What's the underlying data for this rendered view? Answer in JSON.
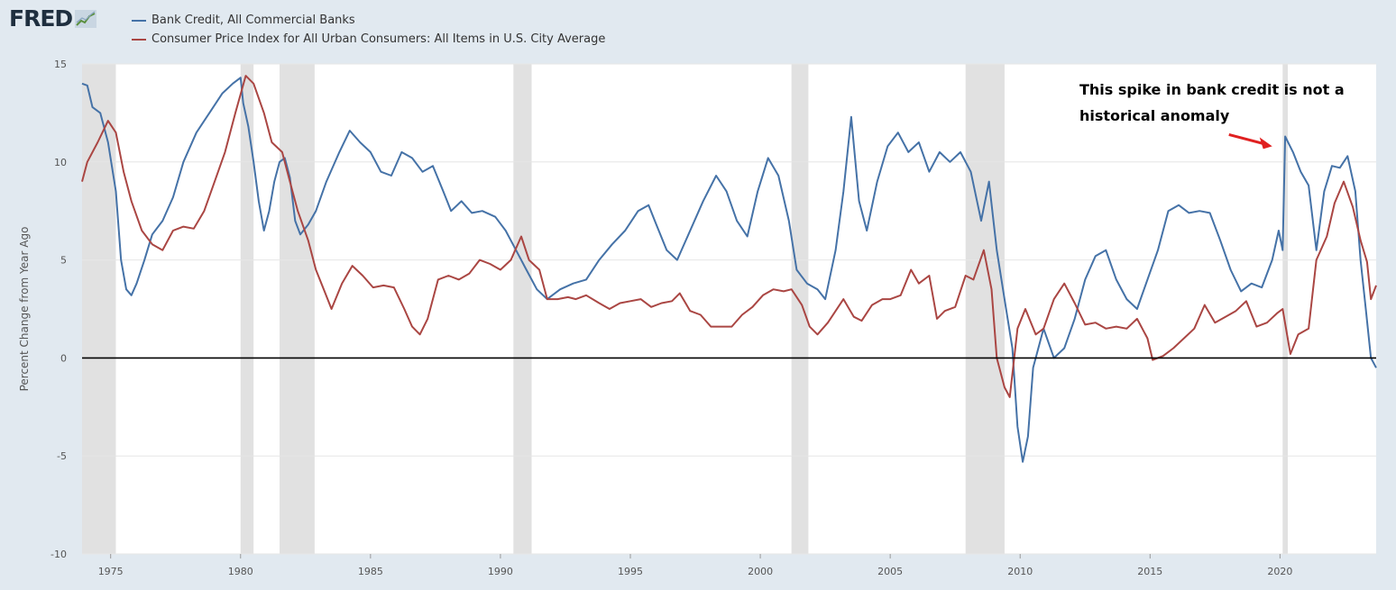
{
  "brand": {
    "logo_text": "FRED"
  },
  "chart_data": {
    "type": "line",
    "title": "",
    "xlabel": "",
    "ylabel": "Percent Change from Year Ago",
    "xlim": [
      1973.9,
      2023.7
    ],
    "ylim": [
      -10,
      15
    ],
    "grid": true,
    "legend_position": "top-left",
    "x_ticks": [
      1975,
      1980,
      1985,
      1990,
      1995,
      2000,
      2005,
      2010,
      2015,
      2020
    ],
    "y_ticks": [
      -10,
      -5,
      0,
      5,
      10,
      15
    ],
    "recessions": [
      [
        1973.9,
        1975.2
      ],
      [
        1980.0,
        1980.5
      ],
      [
        1981.5,
        1982.85
      ],
      [
        1990.5,
        1991.2
      ],
      [
        2001.2,
        2001.85
      ],
      [
        2007.9,
        2009.4
      ],
      [
        2020.1,
        2020.3
      ]
    ],
    "annotation": {
      "lines": [
        "This spike in bank credit is not a",
        "historical anomaly"
      ],
      "arrow_target": [
        2019.7,
        10.8
      ],
      "arrow_color": "#e02020"
    },
    "series": [
      {
        "name": "Bank Credit, All Commercial Banks",
        "color": "#4572a7",
        "points": [
          [
            1973.9,
            14.0
          ],
          [
            1974.1,
            13.9
          ],
          [
            1974.3,
            12.8
          ],
          [
            1974.6,
            12.5
          ],
          [
            1974.9,
            11.0
          ],
          [
            1975.2,
            8.5
          ],
          [
            1975.4,
            5.0
          ],
          [
            1975.6,
            3.5
          ],
          [
            1975.8,
            3.2
          ],
          [
            1976.0,
            3.8
          ],
          [
            1976.3,
            5.0
          ],
          [
            1976.6,
            6.3
          ],
          [
            1977.0,
            7.0
          ],
          [
            1977.4,
            8.2
          ],
          [
            1977.8,
            10.0
          ],
          [
            1978.3,
            11.5
          ],
          [
            1978.8,
            12.5
          ],
          [
            1979.3,
            13.5
          ],
          [
            1979.7,
            14.0
          ],
          [
            1980.0,
            14.3
          ],
          [
            1980.1,
            13.0
          ],
          [
            1980.3,
            11.8
          ],
          [
            1980.5,
            10.0
          ],
          [
            1980.7,
            8.0
          ],
          [
            1980.9,
            6.5
          ],
          [
            1981.1,
            7.5
          ],
          [
            1981.3,
            9.0
          ],
          [
            1981.5,
            10.0
          ],
          [
            1981.7,
            10.2
          ],
          [
            1981.9,
            9.2
          ],
          [
            1982.1,
            7.0
          ],
          [
            1982.3,
            6.3
          ],
          [
            1982.6,
            6.8
          ],
          [
            1982.9,
            7.5
          ],
          [
            1983.3,
            9.0
          ],
          [
            1983.8,
            10.5
          ],
          [
            1984.2,
            11.6
          ],
          [
            1984.6,
            11.0
          ],
          [
            1985.0,
            10.5
          ],
          [
            1985.4,
            9.5
          ],
          [
            1985.8,
            9.3
          ],
          [
            1986.2,
            10.5
          ],
          [
            1986.6,
            10.2
          ],
          [
            1987.0,
            9.5
          ],
          [
            1987.4,
            9.8
          ],
          [
            1987.8,
            8.5
          ],
          [
            1988.1,
            7.5
          ],
          [
            1988.5,
            8.0
          ],
          [
            1988.9,
            7.4
          ],
          [
            1989.3,
            7.5
          ],
          [
            1989.8,
            7.2
          ],
          [
            1990.2,
            6.5
          ],
          [
            1990.6,
            5.5
          ],
          [
            1991.0,
            4.5
          ],
          [
            1991.4,
            3.5
          ],
          [
            1991.8,
            3.0
          ],
          [
            1992.3,
            3.5
          ],
          [
            1992.8,
            3.8
          ],
          [
            1993.3,
            4.0
          ],
          [
            1993.8,
            5.0
          ],
          [
            1994.3,
            5.8
          ],
          [
            1994.8,
            6.5
          ],
          [
            1995.3,
            7.5
          ],
          [
            1995.7,
            7.8
          ],
          [
            1996.0,
            6.8
          ],
          [
            1996.4,
            5.5
          ],
          [
            1996.8,
            5.0
          ],
          [
            1997.3,
            6.5
          ],
          [
            1997.8,
            8.0
          ],
          [
            1998.3,
            9.3
          ],
          [
            1998.7,
            8.5
          ],
          [
            1999.1,
            7.0
          ],
          [
            1999.5,
            6.2
          ],
          [
            1999.9,
            8.5
          ],
          [
            2000.3,
            10.2
          ],
          [
            2000.7,
            9.3
          ],
          [
            2001.1,
            7.0
          ],
          [
            2001.4,
            4.5
          ],
          [
            2001.8,
            3.8
          ],
          [
            2002.2,
            3.5
          ],
          [
            2002.5,
            3.0
          ],
          [
            2002.9,
            5.5
          ],
          [
            2003.2,
            8.5
          ],
          [
            2003.5,
            12.3
          ],
          [
            2003.8,
            8.0
          ],
          [
            2004.1,
            6.5
          ],
          [
            2004.5,
            9.0
          ],
          [
            2004.9,
            10.8
          ],
          [
            2005.3,
            11.5
          ],
          [
            2005.7,
            10.5
          ],
          [
            2006.1,
            11.0
          ],
          [
            2006.5,
            9.5
          ],
          [
            2006.9,
            10.5
          ],
          [
            2007.3,
            10.0
          ],
          [
            2007.7,
            10.5
          ],
          [
            2008.1,
            9.5
          ],
          [
            2008.5,
            7.0
          ],
          [
            2008.8,
            9.0
          ],
          [
            2009.1,
            5.5
          ],
          [
            2009.4,
            3.0
          ],
          [
            2009.7,
            0.5
          ],
          [
            2009.9,
            -3.5
          ],
          [
            2010.1,
            -5.3
          ],
          [
            2010.3,
            -4.0
          ],
          [
            2010.5,
            -0.5
          ],
          [
            2010.9,
            1.5
          ],
          [
            2011.3,
            0.0
          ],
          [
            2011.7,
            0.5
          ],
          [
            2012.1,
            2.0
          ],
          [
            2012.5,
            4.0
          ],
          [
            2012.9,
            5.2
          ],
          [
            2013.3,
            5.5
          ],
          [
            2013.7,
            4.0
          ],
          [
            2014.1,
            3.0
          ],
          [
            2014.5,
            2.5
          ],
          [
            2014.9,
            4.0
          ],
          [
            2015.3,
            5.5
          ],
          [
            2015.7,
            7.5
          ],
          [
            2016.1,
            7.8
          ],
          [
            2016.5,
            7.4
          ],
          [
            2016.9,
            7.5
          ],
          [
            2017.3,
            7.4
          ],
          [
            2017.7,
            6.0
          ],
          [
            2018.1,
            4.5
          ],
          [
            2018.5,
            3.4
          ],
          [
            2018.9,
            3.8
          ],
          [
            2019.3,
            3.6
          ],
          [
            2019.7,
            5.0
          ],
          [
            2019.95,
            6.5
          ],
          [
            2020.1,
            5.5
          ],
          [
            2020.2,
            11.3
          ],
          [
            2020.5,
            10.5
          ],
          [
            2020.8,
            9.5
          ],
          [
            2021.1,
            8.8
          ],
          [
            2021.4,
            5.5
          ],
          [
            2021.7,
            8.5
          ],
          [
            2022.0,
            9.8
          ],
          [
            2022.3,
            9.7
          ],
          [
            2022.6,
            10.3
          ],
          [
            2022.9,
            8.5
          ],
          [
            2023.1,
            5.0
          ],
          [
            2023.3,
            2.5
          ],
          [
            2023.5,
            0.0
          ],
          [
            2023.7,
            -0.5
          ]
        ]
      },
      {
        "name": "Consumer Price Index for All Urban Consumers: All Items in U.S. City Average",
        "color": "#aa4643",
        "points": [
          [
            1973.9,
            9.0
          ],
          [
            1974.1,
            10.0
          ],
          [
            1974.5,
            11.0
          ],
          [
            1974.9,
            12.1
          ],
          [
            1975.2,
            11.5
          ],
          [
            1975.5,
            9.5
          ],
          [
            1975.8,
            8.0
          ],
          [
            1976.2,
            6.5
          ],
          [
            1976.6,
            5.8
          ],
          [
            1977.0,
            5.5
          ],
          [
            1977.4,
            6.5
          ],
          [
            1977.8,
            6.7
          ],
          [
            1978.2,
            6.6
          ],
          [
            1978.6,
            7.5
          ],
          [
            1979.0,
            9.0
          ],
          [
            1979.4,
            10.5
          ],
          [
            1979.8,
            12.5
          ],
          [
            1980.2,
            14.4
          ],
          [
            1980.5,
            14.0
          ],
          [
            1980.9,
            12.5
          ],
          [
            1981.2,
            11.0
          ],
          [
            1981.6,
            10.5
          ],
          [
            1981.9,
            9.0
          ],
          [
            1982.2,
            7.5
          ],
          [
            1982.6,
            6.0
          ],
          [
            1982.9,
            4.5
          ],
          [
            1983.2,
            3.5
          ],
          [
            1983.5,
            2.5
          ],
          [
            1983.9,
            3.8
          ],
          [
            1984.3,
            4.7
          ],
          [
            1984.7,
            4.2
          ],
          [
            1985.1,
            3.6
          ],
          [
            1985.5,
            3.7
          ],
          [
            1985.9,
            3.6
          ],
          [
            1986.3,
            2.5
          ],
          [
            1986.6,
            1.6
          ],
          [
            1986.9,
            1.2
          ],
          [
            1987.2,
            2.0
          ],
          [
            1987.6,
            4.0
          ],
          [
            1988.0,
            4.2
          ],
          [
            1988.4,
            4.0
          ],
          [
            1988.8,
            4.3
          ],
          [
            1989.2,
            5.0
          ],
          [
            1989.6,
            4.8
          ],
          [
            1990.0,
            4.5
          ],
          [
            1990.4,
            5.0
          ],
          [
            1990.8,
            6.2
          ],
          [
            1991.1,
            5.0
          ],
          [
            1991.5,
            4.5
          ],
          [
            1991.8,
            3.0
          ],
          [
            1992.2,
            3.0
          ],
          [
            1992.6,
            3.1
          ],
          [
            1992.9,
            3.0
          ],
          [
            1993.3,
            3.2
          ],
          [
            1993.8,
            2.8
          ],
          [
            1994.2,
            2.5
          ],
          [
            1994.6,
            2.8
          ],
          [
            1995.0,
            2.9
          ],
          [
            1995.4,
            3.0
          ],
          [
            1995.8,
            2.6
          ],
          [
            1996.2,
            2.8
          ],
          [
            1996.6,
            2.9
          ],
          [
            1996.9,
            3.3
          ],
          [
            1997.3,
            2.4
          ],
          [
            1997.7,
            2.2
          ],
          [
            1998.1,
            1.6
          ],
          [
            1998.5,
            1.6
          ],
          [
            1998.9,
            1.6
          ],
          [
            1999.3,
            2.2
          ],
          [
            1999.7,
            2.6
          ],
          [
            2000.1,
            3.2
          ],
          [
            2000.5,
            3.5
          ],
          [
            2000.9,
            3.4
          ],
          [
            2001.2,
            3.5
          ],
          [
            2001.6,
            2.7
          ],
          [
            2001.9,
            1.6
          ],
          [
            2002.2,
            1.2
          ],
          [
            2002.6,
            1.8
          ],
          [
            2002.9,
            2.4
          ],
          [
            2003.2,
            3.0
          ],
          [
            2003.6,
            2.1
          ],
          [
            2003.9,
            1.9
          ],
          [
            2004.3,
            2.7
          ],
          [
            2004.7,
            3.0
          ],
          [
            2005.0,
            3.0
          ],
          [
            2005.4,
            3.2
          ],
          [
            2005.8,
            4.5
          ],
          [
            2006.1,
            3.8
          ],
          [
            2006.5,
            4.2
          ],
          [
            2006.8,
            2.0
          ],
          [
            2007.1,
            2.4
          ],
          [
            2007.5,
            2.6
          ],
          [
            2007.9,
            4.2
          ],
          [
            2008.2,
            4.0
          ],
          [
            2008.6,
            5.5
          ],
          [
            2008.9,
            3.5
          ],
          [
            2009.1,
            0.0
          ],
          [
            2009.4,
            -1.5
          ],
          [
            2009.6,
            -2.0
          ],
          [
            2009.9,
            1.5
          ],
          [
            2010.2,
            2.5
          ],
          [
            2010.6,
            1.2
          ],
          [
            2010.9,
            1.5
          ],
          [
            2011.3,
            3.0
          ],
          [
            2011.7,
            3.8
          ],
          [
            2012.1,
            2.8
          ],
          [
            2012.5,
            1.7
          ],
          [
            2012.9,
            1.8
          ],
          [
            2013.3,
            1.5
          ],
          [
            2013.7,
            1.6
          ],
          [
            2014.1,
            1.5
          ],
          [
            2014.5,
            2.0
          ],
          [
            2014.9,
            1.0
          ],
          [
            2015.1,
            -0.1
          ],
          [
            2015.5,
            0.1
          ],
          [
            2015.9,
            0.5
          ],
          [
            2016.3,
            1.0
          ],
          [
            2016.7,
            1.5
          ],
          [
            2017.1,
            2.7
          ],
          [
            2017.5,
            1.8
          ],
          [
            2017.9,
            2.1
          ],
          [
            2018.3,
            2.4
          ],
          [
            2018.7,
            2.9
          ],
          [
            2019.1,
            1.6
          ],
          [
            2019.5,
            1.8
          ],
          [
            2019.9,
            2.3
          ],
          [
            2020.1,
            2.5
          ],
          [
            2020.4,
            0.2
          ],
          [
            2020.7,
            1.2
          ],
          [
            2021.1,
            1.5
          ],
          [
            2021.4,
            5.0
          ],
          [
            2021.8,
            6.2
          ],
          [
            2022.1,
            7.9
          ],
          [
            2022.45,
            9.0
          ],
          [
            2022.8,
            7.7
          ],
          [
            2023.1,
            6.0
          ],
          [
            2023.35,
            4.9
          ],
          [
            2023.5,
            3.0
          ],
          [
            2023.7,
            3.7
          ]
        ]
      }
    ]
  }
}
